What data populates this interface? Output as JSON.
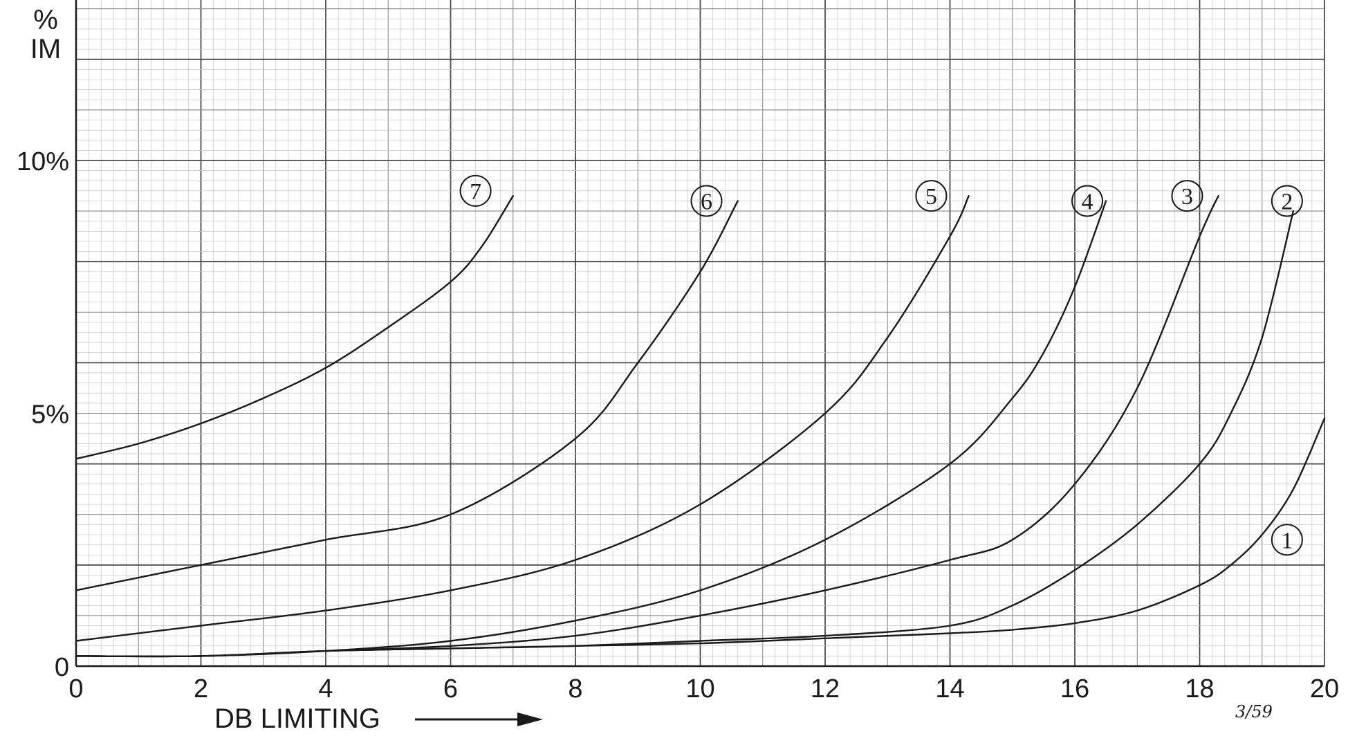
{
  "chart_data": {
    "type": "line",
    "title": "",
    "xlabel": "DB LIMITING",
    "ylabel": "% IM",
    "ylabel_lines": [
      "%",
      "IM"
    ],
    "xlim": [
      0,
      20
    ],
    "ylim": [
      0,
      13
    ],
    "grid": true,
    "x_ticks": [
      0,
      2,
      4,
      6,
      8,
      10,
      12,
      14,
      16,
      18,
      20
    ],
    "x_tick_labels": [
      "0",
      "2",
      "4",
      "6",
      "8",
      "10",
      "12",
      "14",
      "16",
      "18",
      "20"
    ],
    "y_ticks": [
      0,
      5,
      10
    ],
    "y_tick_labels": [
      "0",
      "5%",
      "10%"
    ],
    "annotation": "3/59",
    "series": [
      {
        "name": "1",
        "label_at": [
          19.4,
          2.5
        ],
        "x": [
          0,
          2,
          4,
          6,
          8,
          10,
          12,
          14,
          15,
          16,
          17,
          18,
          18.5,
          19,
          19.5,
          20
        ],
        "y": [
          0.2,
          0.2,
          0.3,
          0.35,
          0.4,
          0.45,
          0.55,
          0.65,
          0.72,
          0.85,
          1.1,
          1.6,
          2.0,
          2.6,
          3.5,
          4.9
        ]
      },
      {
        "name": "2",
        "label_at": [
          19.4,
          9.2
        ],
        "x": [
          0,
          2,
          4,
          6,
          8,
          10,
          12,
          14,
          15,
          16,
          17,
          18,
          18.5,
          19,
          19.5
        ],
        "y": [
          0.2,
          0.2,
          0.3,
          0.35,
          0.4,
          0.5,
          0.6,
          0.8,
          1.2,
          1.9,
          2.8,
          4.0,
          5.0,
          6.5,
          9.0
        ]
      },
      {
        "name": "3",
        "label_at": [
          17.8,
          9.3
        ],
        "x": [
          0,
          2,
          4,
          6,
          8,
          10,
          12,
          14,
          15,
          16,
          17,
          18,
          18.3
        ],
        "y": [
          0.2,
          0.2,
          0.3,
          0.4,
          0.6,
          1.0,
          1.5,
          2.1,
          2.5,
          3.6,
          5.5,
          8.5,
          9.3
        ]
      },
      {
        "name": "4",
        "label_at": [
          16.2,
          9.2
        ],
        "x": [
          0,
          2,
          4,
          6,
          8,
          10,
          12,
          14,
          15,
          15.5,
          16,
          16.5
        ],
        "y": [
          0.2,
          0.2,
          0.3,
          0.5,
          0.9,
          1.5,
          2.5,
          4.0,
          5.3,
          6.2,
          7.5,
          9.2
        ]
      },
      {
        "name": "5",
        "label_at": [
          13.7,
          9.3
        ],
        "x": [
          0,
          2,
          4,
          6,
          8,
          10,
          12,
          13,
          14,
          14.3
        ],
        "y": [
          0.5,
          0.8,
          1.1,
          1.5,
          2.1,
          3.2,
          5.0,
          6.5,
          8.5,
          9.3
        ]
      },
      {
        "name": "6",
        "label_at": [
          10.1,
          9.2
        ],
        "x": [
          0,
          2,
          4,
          6,
          8,
          9,
          10,
          10.6
        ],
        "y": [
          1.5,
          2.0,
          2.5,
          3.0,
          4.5,
          6.0,
          7.8,
          9.2
        ]
      },
      {
        "name": "7",
        "label_at": [
          6.4,
          9.4
        ],
        "x": [
          0,
          1,
          2,
          3,
          4,
          5,
          6,
          6.5,
          7
        ],
        "y": [
          4.1,
          4.4,
          4.8,
          5.3,
          5.9,
          6.7,
          7.6,
          8.3,
          9.3
        ]
      }
    ]
  }
}
